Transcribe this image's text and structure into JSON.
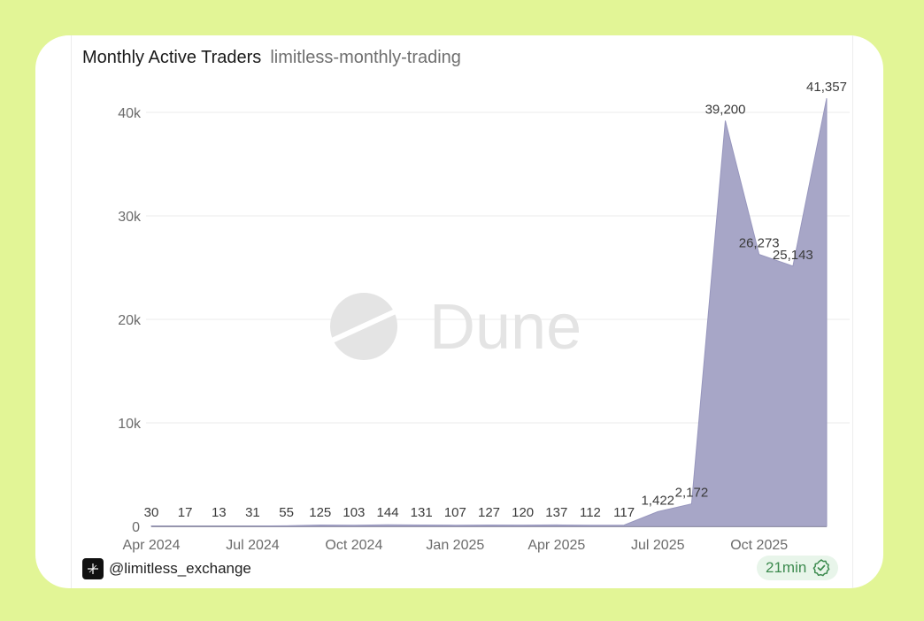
{
  "header": {
    "title": "Monthly Active Traders",
    "subtitle": "limitless-monthly-trading"
  },
  "watermark": {
    "text": "Dune"
  },
  "footer": {
    "handle": "@limitless_exchange",
    "refresh": "21min",
    "logo_icon": "limitless-logo-icon",
    "check_icon": "check-circle-icon"
  },
  "colors": {
    "background": "#e2f596",
    "area_fill": "#a7a6c7",
    "area_stroke": "#9796bd",
    "badge_bg": "#e8f5ea",
    "badge_text": "#3c8a4e"
  },
  "chart_data": {
    "type": "area",
    "x": [
      "2024-04",
      "2024-05",
      "2024-06",
      "2024-07",
      "2024-08",
      "2024-09",
      "2024-10",
      "2024-11",
      "2024-12",
      "2025-01",
      "2025-02",
      "2025-03",
      "2025-04",
      "2025-05",
      "2025-06",
      "2025-07",
      "2025-08",
      "2025-09",
      "2025-10",
      "2025-11",
      "2025-12"
    ],
    "series": [
      {
        "values": [
          30,
          17,
          13,
          31,
          55,
          125,
          103,
          144,
          131,
          107,
          127,
          120,
          137,
          112,
          117,
          1422,
          2172,
          39200,
          26273,
          25143,
          41357
        ],
        "labels": [
          "30",
          "17",
          "13",
          "31",
          "55",
          "125",
          "103",
          "144",
          "131",
          "107",
          "127",
          "120",
          "137",
          "112",
          "117",
          "1,422",
          "2,172",
          "39,200",
          "26,273",
          "25,143",
          "41,357"
        ]
      }
    ],
    "x_ticks": [
      "Apr 2024",
      "Jul 2024",
      "Oct 2024",
      "Jan 2025",
      "Apr 2025",
      "Jul 2025",
      "Oct 2025"
    ],
    "y_ticks": [
      "0",
      "10k",
      "20k",
      "30k",
      "40k"
    ],
    "y_tick_values": [
      0,
      10000,
      20000,
      30000,
      40000
    ],
    "ylim": [
      0,
      40000
    ],
    "grid": "horizontal",
    "title": "Monthly Active Traders",
    "xlabel": "",
    "ylabel": ""
  }
}
